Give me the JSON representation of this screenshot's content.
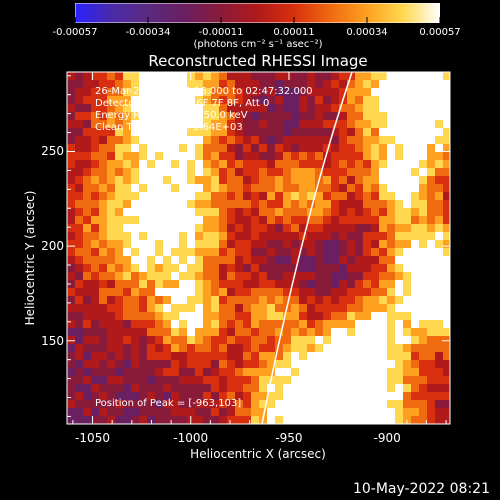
{
  "colorbar": {
    "ticks": [
      "-0.00057",
      "-0.00034",
      "-0.00011",
      "0.00011",
      "0.00034",
      "0.00057"
    ],
    "tick_fracs": [
      0,
      0.2,
      0.4,
      0.6,
      0.8,
      1
    ],
    "unit_label": "(photons cm⁻² s⁻¹ asec⁻²)",
    "colors": [
      "#2a22ff",
      "#4a2aa8",
      "#5a2a80",
      "#6a1f60",
      "#8a1a3a",
      "#b01a1a",
      "#d8300f",
      "#f06a10",
      "#ffa020",
      "#ffd850",
      "#ffffff"
    ]
  },
  "plot": {
    "title": "Reconstructed RHESSI Image",
    "annotations": [
      "26-Mar-2011 02:45:16.000 to 02:47:32.000",
      "Detectors: 3F 4F 5F 6F 7F 8F, Att 0",
      "Energy Range: 25.0 - 50.0 keV",
      "Clean     Total counts: 3.64E+03"
    ],
    "peak_label": "Position of Peak = [-963,103]",
    "x_ticks": [
      "-1050",
      "-1000",
      "-950",
      "-900"
    ],
    "x_tick_values": [
      -1050,
      -1000,
      -950,
      -900
    ],
    "y_ticks": [
      "250",
      "200",
      "150"
    ],
    "y_tick_values": [
      250,
      200,
      150
    ],
    "x_range": [
      -1063,
      -868
    ],
    "y_range": [
      106,
      292
    ],
    "xlabel": "Heliocentric X (arcsec)",
    "ylabel": "Heliocentric Y (arcsec)"
  },
  "footer": {
    "timestamp": "10-May-2022 08:21"
  }
}
